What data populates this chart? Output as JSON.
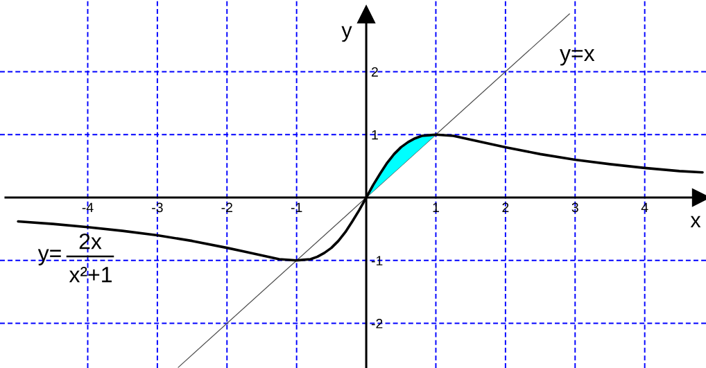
{
  "chart_data": {
    "type": "line",
    "xlabel": "x",
    "ylabel": "y",
    "xlim": [
      -5.26,
      4.88
    ],
    "ylim": [
      -2.71,
      3.14
    ],
    "xticks": [
      -4,
      -3,
      -2,
      -1,
      1,
      2,
      3,
      4
    ],
    "yticks": [
      -2,
      -1,
      1,
      2
    ],
    "grid": true,
    "series": [
      {
        "name": "y=x",
        "color": "#505050",
        "x": [
          -2.7,
          2.92
        ],
        "values": [
          -2.7,
          2.92
        ]
      },
      {
        "color": "#000000",
        "x": [
          -5,
          -4.5,
          -4,
          -3.5,
          -3,
          -2.5,
          -2,
          -1.75,
          -1.5,
          -1.25,
          -1,
          -0.9,
          -0.8,
          -0.7,
          -0.6,
          -0.5,
          -0.4,
          -0.3,
          -0.2,
          -0.1,
          0,
          0.1,
          0.2,
          0.3,
          0.4,
          0.5,
          0.6,
          0.7,
          0.8,
          0.9,
          1,
          1.25,
          1.5,
          1.75,
          2,
          2.5,
          3,
          3.5,
          4,
          4.5,
          4.83
        ],
        "values": [
          -0.38,
          -0.42,
          -0.47,
          -0.53,
          -0.6,
          -0.69,
          -0.8,
          -0.86,
          -0.92,
          -0.98,
          -1,
          -0.99,
          -0.98,
          -0.94,
          -0.88,
          -0.8,
          -0.69,
          -0.55,
          -0.38,
          -0.2,
          0,
          0.2,
          0.38,
          0.55,
          0.69,
          0.8,
          0.88,
          0.94,
          0.98,
          0.99,
          1,
          0.98,
          0.92,
          0.86,
          0.8,
          0.69,
          0.6,
          0.53,
          0.47,
          0.42,
          0.4
        ],
        "lower": [
          null,
          null,
          null,
          null,
          null,
          null,
          null,
          null,
          null,
          null,
          null,
          null,
          null,
          null,
          null,
          null,
          null,
          null,
          null,
          null,
          0,
          0.1,
          0.2,
          0.3,
          0.4,
          0.5,
          0.6,
          0.7,
          0.8,
          0.9,
          1,
          null,
          null,
          null,
          null,
          null,
          null,
          null,
          null,
          null,
          null
        ],
        "upper": [
          null,
          null,
          null,
          null,
          null,
          null,
          null,
          null,
          null,
          null,
          null,
          null,
          null,
          null,
          null,
          null,
          null,
          null,
          null,
          null,
          0,
          0.2,
          0.38,
          0.55,
          0.69,
          0.8,
          0.88,
          0.94,
          0.98,
          0.99,
          1,
          null,
          null,
          null,
          null,
          null,
          null,
          null,
          null,
          null,
          null
        ]
      }
    ],
    "annotations": [
      "y=",
      "2x",
      "x²+1"
    ]
  }
}
